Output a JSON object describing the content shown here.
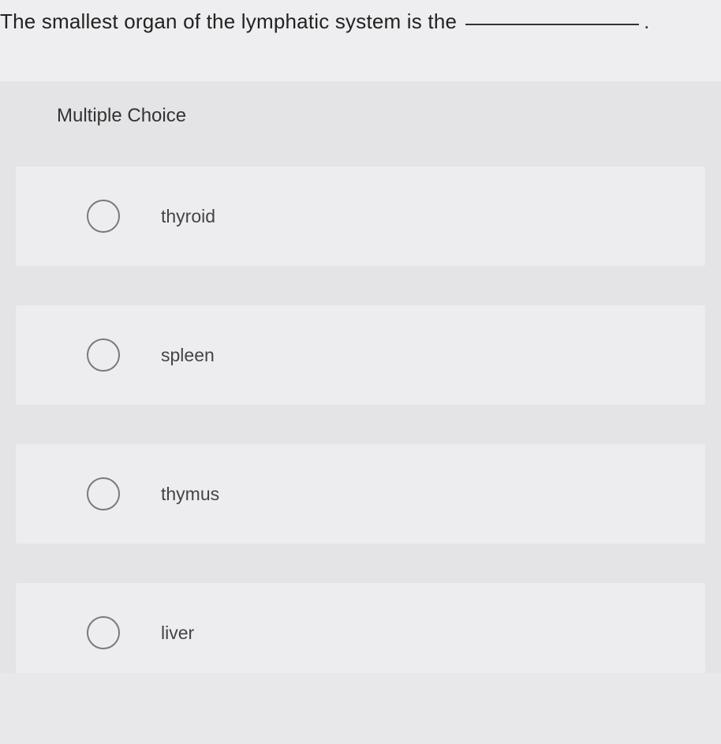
{
  "question": {
    "text_before_blank": "The smallest organ of the lymphatic system is the",
    "period": "."
  },
  "section_label": "Multiple Choice",
  "options": [
    {
      "label": "thyroid"
    },
    {
      "label": "spleen"
    },
    {
      "label": "thymus"
    },
    {
      "label": "liver"
    }
  ],
  "colors": {
    "background": "#e8e8ea",
    "option_bg": "#ededef",
    "text": "#333333",
    "radio_border": "#7a7a7a"
  }
}
